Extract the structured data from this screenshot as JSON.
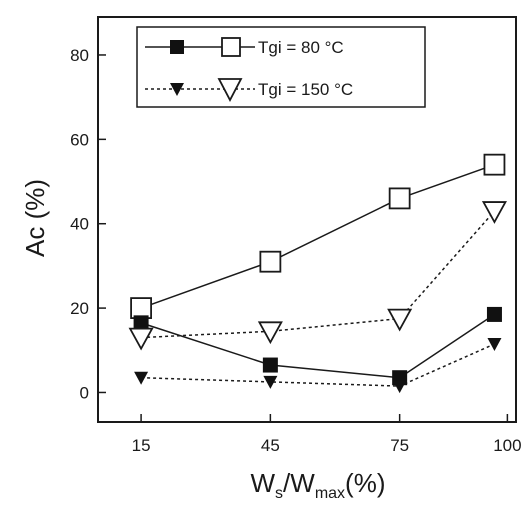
{
  "chart_data": {
    "type": "line",
    "x": [
      15,
      45,
      75,
      97
    ],
    "series": [
      {
        "name": "Tgi =  80 °C",
        "line": "solid",
        "marker": "square",
        "values": [
          20,
          31,
          46,
          54
        ]
      },
      {
        "name": "Tgi =  80 °C",
        "line": "solid",
        "marker": "square",
        "values": [
          16.5,
          6.5,
          3.5,
          18.5
        ]
      },
      {
        "name": "Tgi = 150 °C",
        "line": "dashed",
        "marker": "triangle-down",
        "values": [
          13,
          14.5,
          17.5,
          43
        ]
      },
      {
        "name": "Tgi = 150 °C",
        "line": "dashed",
        "marker": "triangle-down",
        "values": [
          3.5,
          2.5,
          1.5,
          11.5
        ]
      }
    ],
    "legend": [
      {
        "label": "Tgi =  80 °C",
        "line": "solid"
      },
      {
        "label": "Tgi = 150 °C",
        "line": "dashed"
      }
    ],
    "xticks": [
      15,
      45,
      75,
      100
    ],
    "yticks": [
      0,
      20,
      40,
      60,
      80
    ],
    "xlim": [
      5,
      102
    ],
    "ylim": [
      -7,
      89
    ],
    "ylabel": "Ac  (%)",
    "xlabel": {
      "main": "W",
      "sub1": "s",
      "slash": "/W",
      "sub2": "max",
      "tail": "(%)"
    },
    "legend_position": "top-right",
    "grid": false,
    "colors": {
      "line": "#1a1a1a",
      "open_fill": "#ffffff",
      "filled": "#111111"
    }
  }
}
